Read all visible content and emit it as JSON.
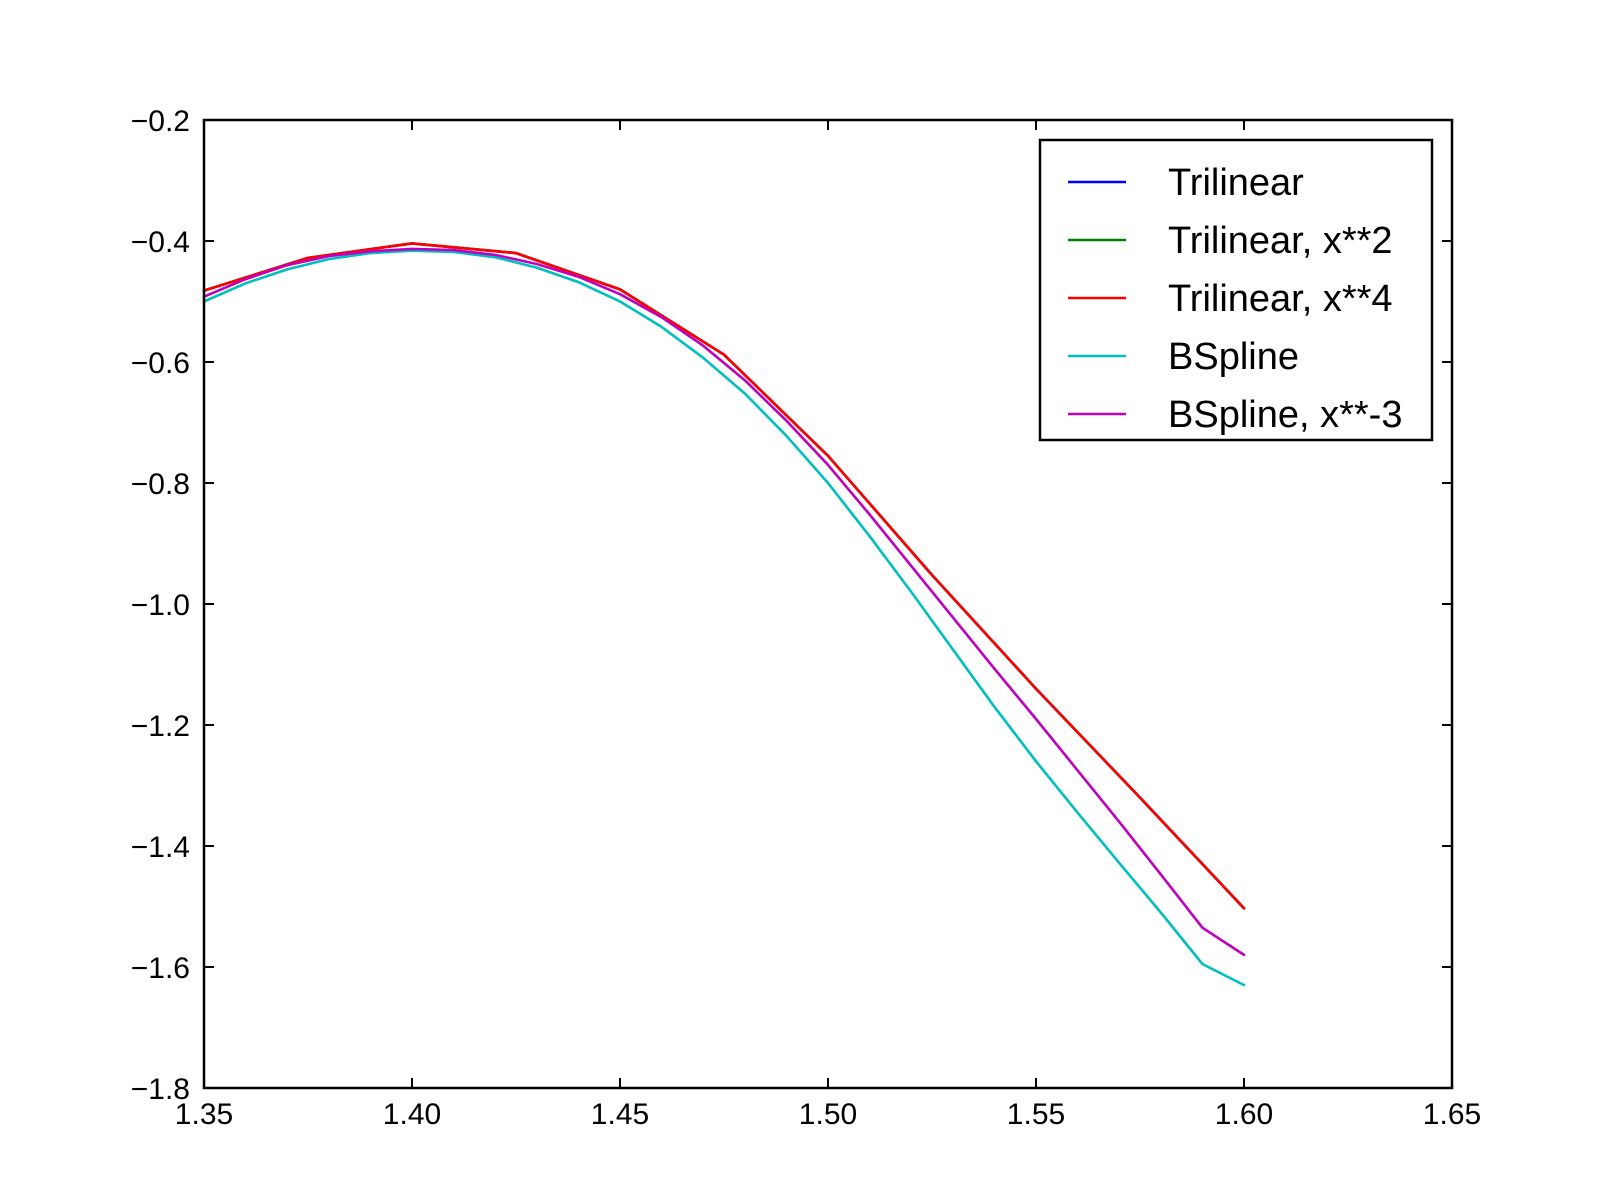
{
  "chart_data": {
    "type": "line",
    "title": "",
    "xlabel": "",
    "ylabel": "",
    "xlim": [
      1.35,
      1.65
    ],
    "ylim": [
      -1.8,
      -0.2
    ],
    "xticks": [
      1.35,
      1.4,
      1.45,
      1.5,
      1.55,
      1.6,
      1.65
    ],
    "yticks": [
      -0.2,
      -0.4,
      -0.6,
      -0.8,
      -1.0,
      -1.2,
      -1.4,
      -1.6,
      -1.8
    ],
    "xtick_labels": [
      "1.35",
      "1.40",
      "1.45",
      "1.50",
      "1.55",
      "1.60",
      "1.65"
    ],
    "ytick_labels": [
      "−0.2",
      "−0.4",
      "−0.6",
      "−0.8",
      "−1.0",
      "−1.2",
      "−1.4",
      "−1.6",
      "−1.8"
    ],
    "grid": false,
    "legend_position": "top-right",
    "series": [
      {
        "name": "Trilinear",
        "color": "#0000ff",
        "x": [
          1.35,
          1.375,
          1.4,
          1.425,
          1.45,
          1.475,
          1.5,
          1.525,
          1.55,
          1.575,
          1.6
        ],
        "y": [
          -0.482,
          -0.428,
          -0.404,
          -0.42,
          -0.48,
          -0.588,
          -0.755,
          -0.952,
          -1.14,
          -1.32,
          -1.503
        ]
      },
      {
        "name": "Trilinear, x**2",
        "color": "#008000",
        "x": [
          1.35,
          1.375,
          1.4,
          1.425,
          1.45,
          1.475,
          1.5,
          1.525,
          1.55,
          1.575,
          1.6
        ],
        "y": [
          -0.482,
          -0.428,
          -0.404,
          -0.42,
          -0.48,
          -0.588,
          -0.755,
          -0.952,
          -1.14,
          -1.32,
          -1.503
        ]
      },
      {
        "name": "Trilinear, x**4",
        "color": "#ff0000",
        "x": [
          1.35,
          1.375,
          1.4,
          1.425,
          1.45,
          1.475,
          1.5,
          1.525,
          1.55,
          1.575,
          1.6
        ],
        "y": [
          -0.482,
          -0.428,
          -0.404,
          -0.42,
          -0.48,
          -0.588,
          -0.755,
          -0.952,
          -1.14,
          -1.32,
          -1.503
        ]
      },
      {
        "name": "BSpline",
        "color": "#00bfbf",
        "x": [
          1.35,
          1.36,
          1.37,
          1.38,
          1.39,
          1.4,
          1.41,
          1.42,
          1.43,
          1.44,
          1.45,
          1.46,
          1.47,
          1.48,
          1.49,
          1.5,
          1.51,
          1.52,
          1.53,
          1.54,
          1.55,
          1.56,
          1.57,
          1.58,
          1.59,
          1.6
        ],
        "y": [
          -0.5,
          -0.47,
          -0.447,
          -0.43,
          -0.42,
          -0.416,
          -0.418,
          -0.427,
          -0.444,
          -0.468,
          -0.5,
          -0.542,
          -0.593,
          -0.652,
          -0.722,
          -0.8,
          -0.888,
          -0.98,
          -1.075,
          -1.17,
          -1.26,
          -1.345,
          -1.428,
          -1.51,
          -1.595,
          -1.63
        ]
      },
      {
        "name": "BSpline, x**-3",
        "color": "#bf00bf",
        "x": [
          1.35,
          1.36,
          1.37,
          1.38,
          1.39,
          1.4,
          1.41,
          1.42,
          1.43,
          1.44,
          1.45,
          1.46,
          1.47,
          1.48,
          1.49,
          1.5,
          1.51,
          1.52,
          1.53,
          1.54,
          1.55,
          1.56,
          1.57,
          1.58,
          1.59,
          1.6
        ],
        "y": [
          -0.492,
          -0.463,
          -0.44,
          -0.425,
          -0.417,
          -0.413,
          -0.415,
          -0.423,
          -0.438,
          -0.459,
          -0.488,
          -0.526,
          -0.573,
          -0.63,
          -0.697,
          -0.77,
          -0.852,
          -0.937,
          -1.022,
          -1.107,
          -1.19,
          -1.275,
          -1.36,
          -1.447,
          -1.535,
          -1.58
        ]
      }
    ]
  }
}
